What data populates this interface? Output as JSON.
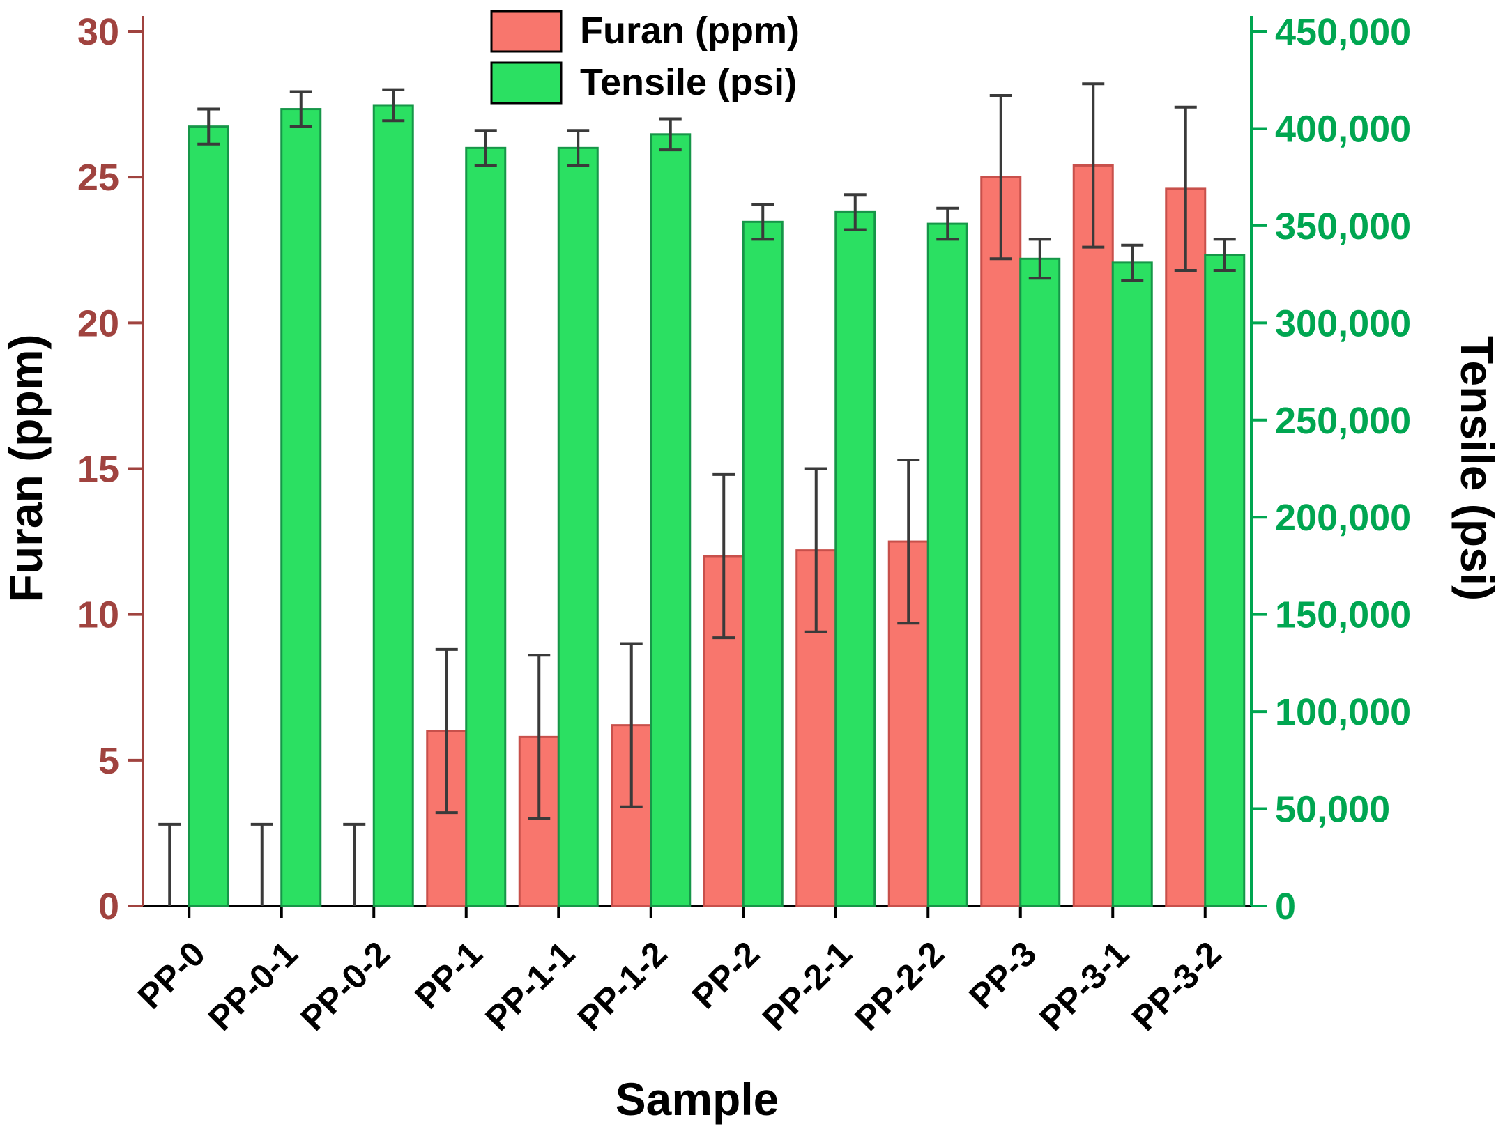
{
  "chart_data": {
    "type": "bar",
    "title": "",
    "xlabel": "Sample",
    "ylabel_left": "Furan (ppm)",
    "ylabel_right": "Tensile (psi)",
    "legend_position": "top-center",
    "grid": false,
    "categories": [
      "PP-0",
      "PP-0-1",
      "PP-0-2",
      "PP-1",
      "PP-1-1",
      "PP-1-2",
      "PP-2",
      "PP-2-1",
      "PP-2-2",
      "PP-3",
      "PP-3-1",
      "PP-3-2"
    ],
    "series": [
      {
        "name": "Furan (ppm)",
        "axis": "left",
        "color": "#F8766D",
        "edge": "#C8504B",
        "values": [
          0,
          0,
          0,
          6.0,
          5.8,
          6.2,
          12.0,
          12.2,
          12.5,
          25.0,
          25.4,
          24.6
        ],
        "errors": [
          2.8,
          2.8,
          2.8,
          2.8,
          2.8,
          2.8,
          2.8,
          2.8,
          2.8,
          2.8,
          2.8,
          2.8
        ]
      },
      {
        "name": "Tensile (psi)",
        "axis": "right",
        "color": "#2BE062",
        "edge": "#169648",
        "values": [
          401000,
          410000,
          412000,
          390000,
          390000,
          397000,
          352000,
          357000,
          351000,
          333000,
          331000,
          335000
        ],
        "errors": [
          9000,
          9000,
          8000,
          9000,
          9000,
          8000,
          9000,
          9000,
          8000,
          10000,
          9000,
          8000
        ]
      }
    ],
    "left_axis": {
      "min": 0,
      "max": 30,
      "tick_values": [
        0,
        5,
        10,
        15,
        20,
        25,
        30
      ],
      "tick_labels": [
        "0",
        "5",
        "10",
        "15",
        "20",
        "25",
        "30"
      ],
      "color": "#A0433F"
    },
    "right_axis": {
      "min": 0,
      "max": 450000,
      "tick_values": [
        0,
        50000,
        100000,
        150000,
        200000,
        250000,
        300000,
        350000,
        400000,
        450000
      ],
      "tick_labels": [
        "0",
        "50,000",
        "100,000",
        "150,000",
        "200,000",
        "250,000",
        "300,000",
        "350,000",
        "400,000",
        "450,000"
      ],
      "color": "#00A651"
    },
    "error_bar_color": "#3a3a3a"
  }
}
